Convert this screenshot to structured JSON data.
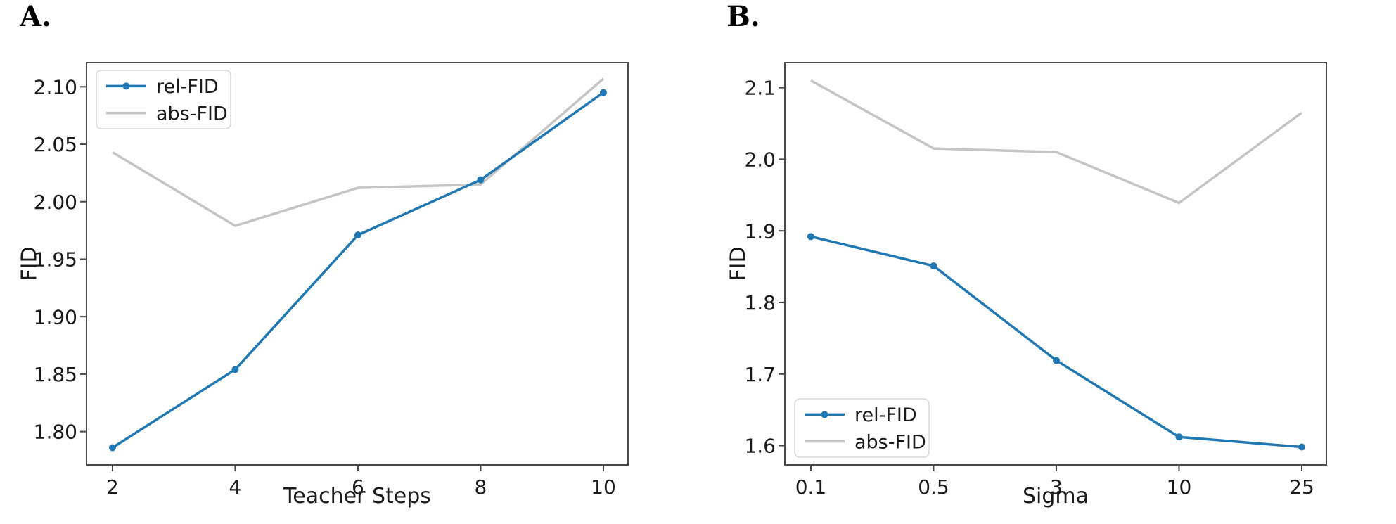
{
  "colors": {
    "background": "#ffffff",
    "rel_fid": "#1f77b4",
    "abs_fid": "#c5c5c5",
    "spine": "#4a4a4a",
    "text": "#1a1a1a",
    "legend_border": "#d9d9d9",
    "legend_background": "#ffffff"
  },
  "chart_data": [
    {
      "type": "line",
      "panel_label": "A.",
      "xlabel": "Teacher Steps",
      "ylabel": "FID",
      "x_categories": [
        "2",
        "4",
        "6",
        "8",
        "10"
      ],
      "ytick_labels": [
        "2.10",
        "2.05",
        "2.00",
        "1.95",
        "1.90",
        "1.85",
        "1.80"
      ],
      "ytick_values": [
        2.1,
        2.05,
        2.0,
        1.95,
        1.9,
        1.85,
        1.8
      ],
      "ylim": [
        1.771,
        2.121
      ],
      "grid": false,
      "legend": {
        "loc": "upper-left",
        "entries": [
          "rel-FID",
          "abs-FID"
        ]
      },
      "series": [
        {
          "name": "rel-FID",
          "color_key": "rel_fid",
          "marker": true,
          "values": [
            1.786,
            1.854,
            1.971,
            2.019,
            2.095
          ]
        },
        {
          "name": "abs-FID",
          "color_key": "abs_fid",
          "marker": false,
          "values": [
            2.043,
            1.979,
            2.012,
            2.015,
            2.107
          ]
        }
      ]
    },
    {
      "type": "line",
      "panel_label": "B.",
      "xlabel": "Sigma",
      "ylabel": "FID",
      "x_categories": [
        "0.1",
        "0.5",
        "3",
        "10",
        "25"
      ],
      "ytick_labels": [
        "2.1",
        "2.0",
        "1.9",
        "1.8",
        "1.7",
        "1.6"
      ],
      "ytick_values": [
        2.1,
        2.0,
        1.9,
        1.8,
        1.7,
        1.6
      ],
      "ylim": [
        1.573,
        2.135
      ],
      "grid": false,
      "legend": {
        "loc": "lower-left",
        "entries": [
          "rel-FID",
          "abs-FID"
        ]
      },
      "series": [
        {
          "name": "rel-FID",
          "color_key": "rel_fid",
          "marker": true,
          "values": [
            1.892,
            1.851,
            1.719,
            1.612,
            1.598
          ]
        },
        {
          "name": "abs-FID",
          "color_key": "abs_fid",
          "marker": false,
          "values": [
            2.11,
            2.015,
            2.01,
            1.939,
            2.065
          ]
        }
      ]
    }
  ]
}
